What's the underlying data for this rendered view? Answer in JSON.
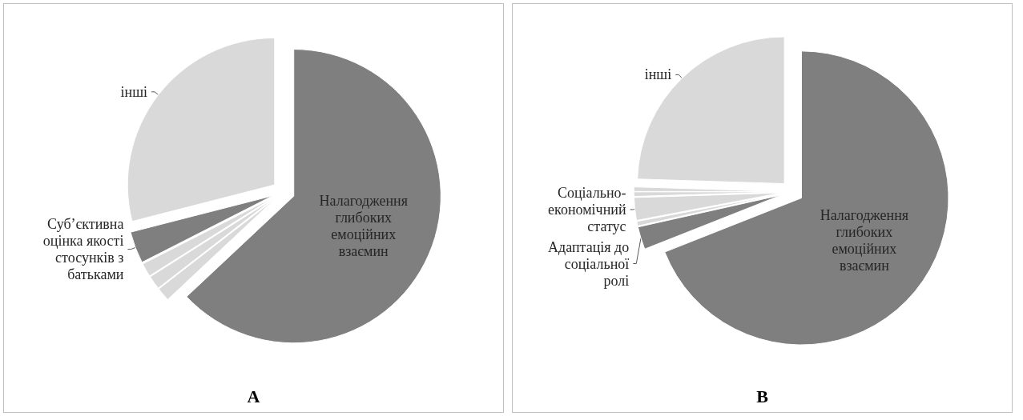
{
  "chart_data": [
    {
      "type": "pie",
      "title": "A",
      "categories": [
        "Налагодження глибоких емоційних взаємин",
        null,
        null,
        null,
        "Суб’єктивна оцінка якості стосунків з батьками",
        "інші"
      ],
      "values": [
        63,
        1.5,
        1.5,
        1.5,
        3.5,
        29
      ],
      "colors": [
        "#7f7f7f",
        "#d9d9d9",
        "#d9d9d9",
        "#d9d9d9",
        "#7f7f7f",
        "#d9d9d9"
      ]
    },
    {
      "type": "pie",
      "title": "B",
      "categories": [
        "Налагодження глибоких емоційних взаємин",
        "Адаптація до соціальної ролі",
        null,
        "Соціально-економічний статус",
        null,
        null,
        "інші"
      ],
      "values": [
        69,
        2.5,
        0.5,
        2.5,
        0.5,
        0.5,
        24.5
      ],
      "colors": [
        "#7f7f7f",
        "#7f7f7f",
        "#d9d9d9",
        "#d9d9d9",
        "#d9d9d9",
        "#d9d9d9",
        "#d9d9d9"
      ]
    }
  ]
}
